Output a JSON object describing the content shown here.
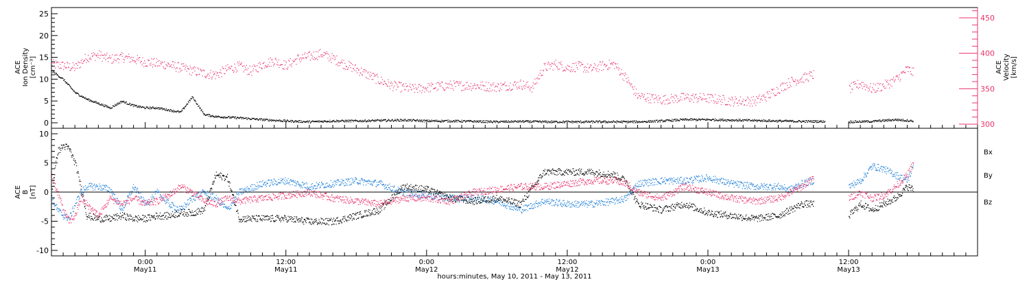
{
  "title_line": "hours:minutes, May 10, 2011 - May 13, 2011",
  "colors": {
    "density": "#000000",
    "velocity": "#e8336b",
    "bx": "#000000",
    "by": "#1e7fd8",
    "bz": "#e8336b",
    "axes": "#000000"
  },
  "x_axis": {
    "unit": "hours since 2011-05-10 00:00",
    "ticks": [
      {
        "hours": 24,
        "time": "0:00",
        "date": "May11"
      },
      {
        "hours": 36,
        "time": "12:00",
        "date": "May11"
      },
      {
        "hours": 48,
        "time": "0:00",
        "date": "May12"
      },
      {
        "hours": 60,
        "time": "12:00",
        "date": "May12"
      },
      {
        "hours": 72,
        "time": "0:00",
        "date": "May13"
      },
      {
        "hours": 84,
        "time": "12:00",
        "date": "May13"
      }
    ]
  },
  "top_panel": {
    "left_label_lines": [
      "ACE",
      "Ion Density",
      "[cm⁻³]"
    ],
    "right_label_lines": [
      "ACE",
      "Velocity",
      "[km/s]"
    ],
    "left_ticks": [
      "0",
      "5",
      "10",
      "15",
      "20",
      "25"
    ],
    "right_ticks": [
      "300",
      "350",
      "400",
      "450"
    ]
  },
  "bottom_panel": {
    "left_label_lines": [
      "ACE",
      "B",
      "[nT]"
    ],
    "left_ticks": [
      "-10",
      "-5",
      "0",
      "5",
      "10"
    ],
    "legend": [
      "Bx",
      "By",
      "Bz"
    ]
  },
  "chart_data": [
    {
      "type": "scatter",
      "x_unit": "hours since 2011-05-10 00:00",
      "xlim": [
        16,
        95
      ],
      "ylabel": "ACE Ion Density [cm⁻³]",
      "ylim": [
        -1,
        26
      ],
      "y2label": "ACE Velocity [km/s]",
      "y2lim": [
        297,
        465
      ],
      "grid": false,
      "series": [
        {
          "name": "Ion Density",
          "axis": "left",
          "x": [
            16,
            17,
            18,
            19,
            20,
            21,
            22,
            23,
            24,
            25,
            26,
            27,
            28,
            29,
            30,
            32,
            34,
            36,
            38,
            40,
            42,
            44,
            46,
            48,
            50,
            52,
            54,
            56,
            58,
            60,
            62,
            64,
            66,
            68,
            70,
            72,
            74,
            76,
            78,
            80,
            82,
            83,
            84,
            86,
            88,
            89.5
          ],
          "y": [
            12,
            10,
            7,
            5.5,
            4.5,
            3.5,
            5,
            4,
            3.5,
            3.5,
            3,
            2.5,
            6,
            2,
            1.5,
            1.2,
            0.8,
            0.5,
            0.3,
            0.5,
            0.5,
            0.6,
            0.7,
            0.5,
            0.5,
            0.4,
            0.3,
            0.4,
            0.3,
            0.3,
            0.3,
            0.3,
            0.3,
            0.5,
            0.8,
            0.8,
            0.7,
            0.6,
            0.5,
            0.4,
            0.4,
            null,
            0.3,
            0.4,
            0.8,
            0.5
          ]
        },
        {
          "name": "Velocity",
          "axis": "right",
          "x": [
            16,
            17,
            18,
            19,
            20,
            21,
            22,
            23,
            24,
            25,
            26,
            27,
            28,
            29,
            30,
            31,
            32,
            33,
            34,
            35,
            36,
            37,
            38,
            39,
            40,
            41,
            42,
            43,
            44,
            45,
            46,
            47,
            48,
            50,
            52,
            54,
            56,
            57,
            58,
            59,
            60,
            61,
            62,
            63,
            64,
            65,
            66,
            68,
            70,
            72,
            74,
            76,
            77,
            78,
            79,
            80,
            81,
            82,
            83,
            84,
            85,
            86,
            87,
            88,
            89,
            89.5
          ],
          "y": [
            385,
            383,
            380,
            395,
            398,
            392,
            395,
            392,
            388,
            386,
            384,
            380,
            376,
            372,
            370,
            378,
            382,
            375,
            385,
            390,
            383,
            393,
            396,
            400,
            393,
            385,
            378,
            370,
            362,
            355,
            352,
            350,
            352,
            355,
            355,
            353,
            357,
            352,
            380,
            385,
            380,
            382,
            378,
            383,
            385,
            365,
            340,
            335,
            338,
            337,
            333,
            333,
            340,
            350,
            360,
            365,
            370,
            null,
            null,
            350,
            358,
            350,
            355,
            363,
            378,
            373
          ]
        }
      ]
    },
    {
      "type": "scatter",
      "x_unit": "hours since 2011-05-10 00:00",
      "xlim": [
        16,
        95
      ],
      "ylabel": "ACE B [nT]",
      "ylim": [
        -10.5,
        10.5
      ],
      "grid": false,
      "reference_line_y": 0,
      "series": [
        {
          "name": "Bx",
          "x": [
            16,
            16.5,
            17,
            17.5,
            18,
            18.5,
            19,
            20,
            21,
            22,
            23,
            24,
            25,
            26,
            27,
            28,
            29,
            30,
            31,
            32,
            34,
            36,
            38,
            40,
            42,
            44,
            46,
            48,
            50,
            52,
            54,
            56,
            58,
            60,
            62,
            64,
            65,
            66,
            68,
            70,
            72,
            74,
            76,
            78,
            79,
            80,
            81,
            82,
            83,
            84,
            85,
            86,
            87,
            88,
            89,
            89.5
          ],
          "y": [
            0,
            7,
            8,
            7.5,
            5,
            1,
            -4,
            -4.5,
            -4.5,
            -4,
            -4.5,
            -4.5,
            -4,
            -4,
            -3.5,
            -3.5,
            -3,
            3,
            2.5,
            -4.5,
            -4.5,
            -4.5,
            -5,
            -5,
            -4,
            -3,
            1,
            0.5,
            -1,
            -1.5,
            -1,
            -2,
            3.5,
            3.5,
            3.5,
            3,
            2,
            -2,
            -3,
            -2,
            -3.5,
            -4,
            -4.5,
            -4,
            -3,
            -2,
            -2,
            null,
            null,
            -4,
            -2,
            -3,
            -2,
            -1,
            1,
            0.5
          ]
        },
        {
          "name": "By",
          "x": [
            16,
            16.5,
            17,
            17.5,
            18,
            18.5,
            19,
            20,
            21,
            22,
            23,
            24,
            25,
            26,
            27,
            28,
            29,
            30,
            31,
            32,
            34,
            36,
            38,
            40,
            42,
            44,
            46,
            48,
            50,
            52,
            54,
            56,
            58,
            60,
            62,
            64,
            65,
            66,
            68,
            70,
            72,
            74,
            76,
            78,
            79,
            80,
            81,
            82,
            83,
            84,
            85,
            86,
            87,
            88,
            89,
            89.5
          ],
          "y": [
            -1,
            -3,
            -4,
            -4.5,
            -2,
            0,
            1,
            1,
            0.5,
            -3,
            1,
            -2,
            0,
            -2,
            -3,
            -1,
            0,
            -1,
            -3,
            0,
            1.5,
            2,
            1,
            1.5,
            2,
            1.5,
            0,
            -0.5,
            -1,
            -1,
            -1.5,
            -3,
            -1.5,
            -2,
            -2,
            -1.5,
            -1,
            1.5,
            2,
            2,
            2.5,
            1.5,
            1,
            1,
            0.5,
            1.5,
            2,
            null,
            null,
            1,
            2,
            4.5,
            4,
            3,
            2,
            4.5
          ]
        },
        {
          "name": "Bz",
          "x": [
            16,
            16.5,
            17,
            17.5,
            18,
            18.5,
            19,
            20,
            21,
            22,
            23,
            24,
            25,
            26,
            27,
            28,
            29,
            30,
            31,
            32,
            34,
            36,
            38,
            40,
            42,
            44,
            46,
            48,
            50,
            52,
            54,
            56,
            58,
            60,
            62,
            64,
            65,
            66,
            68,
            70,
            72,
            74,
            76,
            78,
            79,
            80,
            81,
            82,
            83,
            84,
            85,
            86,
            87,
            88,
            89,
            89.5
          ],
          "y": [
            3,
            0,
            -3,
            -5,
            -4,
            -1,
            -2,
            -4,
            -1,
            -2,
            -1,
            -2,
            -1.5,
            -0.5,
            1,
            0,
            -1.5,
            -2,
            -1,
            -1.5,
            -1,
            -0.5,
            0,
            -1,
            -1.5,
            -2,
            -1,
            -1,
            -1.5,
            0,
            0.5,
            1,
            1,
            1.5,
            2,
            2,
            1.5,
            0,
            -1,
            1,
            0,
            -1,
            -1.5,
            -1,
            0,
            1,
            2.5,
            null,
            null,
            -1,
            0,
            -1,
            -0.5,
            1,
            3,
            5
          ]
        }
      ]
    }
  ]
}
